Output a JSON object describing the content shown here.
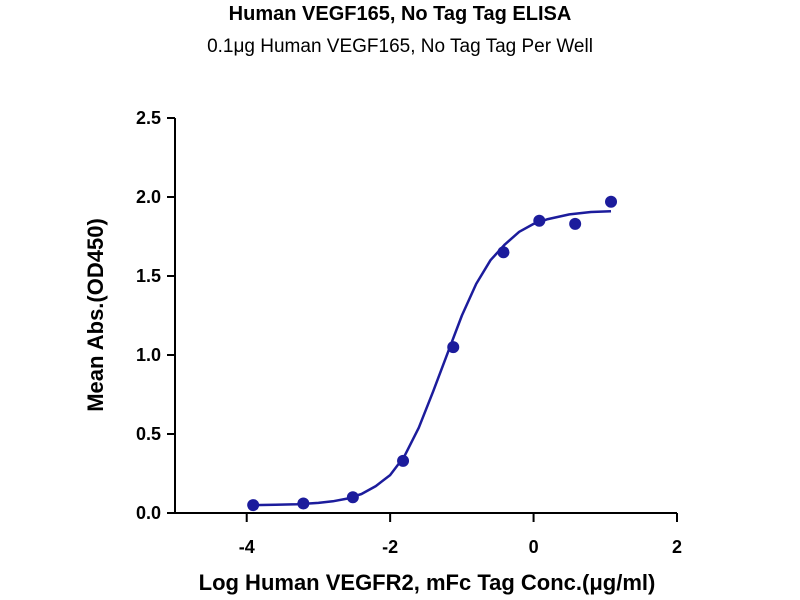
{
  "chart_data": {
    "type": "scatter",
    "title": "Human VEGF165, No Tag Tag ELISA",
    "subtitle": "0.1μg Human VEGF165, No Tag Tag Per Well",
    "xlabel": "Log Human VEGFR2, mFc Tag Conc.(μg/ml)",
    "ylabel": "Mean Abs.(OD450)",
    "xlim": [
      -5,
      2
    ],
    "ylim": [
      0,
      2.5
    ],
    "xticks": [
      -4,
      -2,
      0,
      2
    ],
    "xtick_labels": [
      "-4",
      "-2",
      "0",
      "2"
    ],
    "yticks": [
      0,
      0.5,
      1.0,
      1.5,
      2.0,
      2.5
    ],
    "ytick_labels": [
      "0.0",
      "0.5",
      "1.0",
      "1.5",
      "2.0",
      "2.5"
    ],
    "grid": false,
    "color": "#1c1c9c",
    "series": [
      {
        "x": [
          -3.91,
          -3.21,
          -2.52,
          -1.82,
          -1.12,
          -0.42,
          0.08,
          0.58,
          1.08
        ],
        "y": [
          0.05,
          0.06,
          0.1,
          0.33,
          1.05,
          1.65,
          1.85,
          1.83,
          1.97
        ]
      }
    ],
    "fit": {
      "type": "4PL",
      "x": [
        -3.91,
        -3.6,
        -3.3,
        -3.0,
        -2.8,
        -2.6,
        -2.4,
        -2.2,
        -2.0,
        -1.8,
        -1.6,
        -1.4,
        -1.2,
        -1.0,
        -0.8,
        -0.6,
        -0.4,
        -0.2,
        0.0,
        0.2,
        0.5,
        0.8,
        1.08
      ],
      "y": [
        0.05,
        0.052,
        0.056,
        0.064,
        0.074,
        0.091,
        0.12,
        0.17,
        0.24,
        0.36,
        0.54,
        0.77,
        1.01,
        1.25,
        1.45,
        1.6,
        1.7,
        1.78,
        1.83,
        1.86,
        1.89,
        1.905,
        1.91
      ]
    }
  }
}
